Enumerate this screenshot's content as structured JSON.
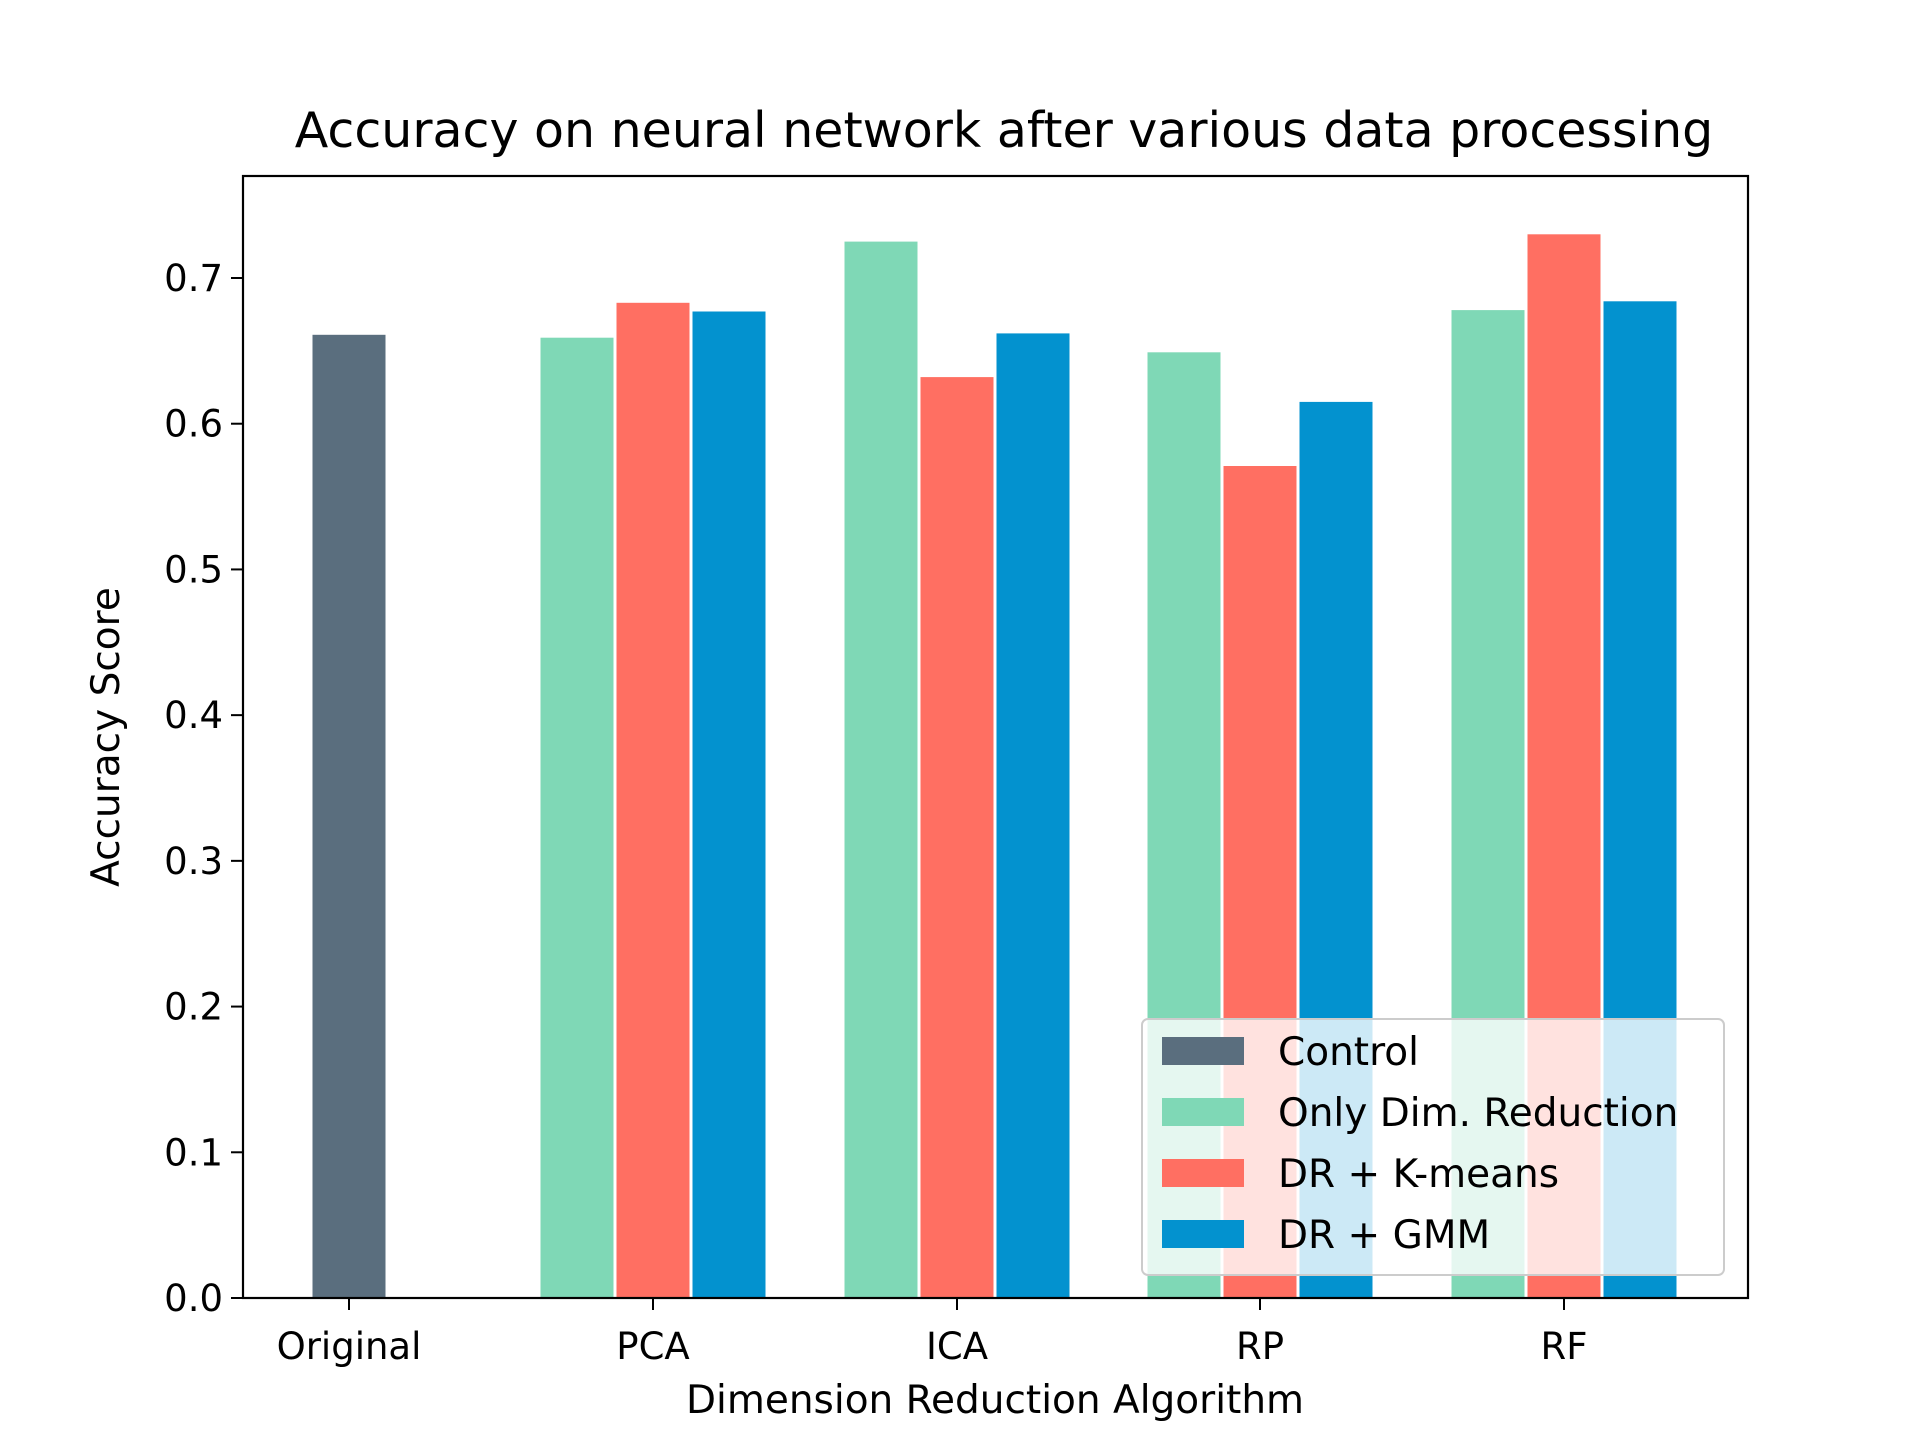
{
  "chart_data": {
    "type": "bar",
    "title": "Accuracy on neural network after various data processing",
    "xlabel": "Dimension Reduction Algorithm",
    "ylabel": "Accuracy Score",
    "categories": [
      "Original",
      "PCA",
      "ICA",
      "RP",
      "RF"
    ],
    "ylim": [
      0,
      0.77
    ],
    "yticks": [
      "0.0",
      "0.1",
      "0.2",
      "0.3",
      "0.4",
      "0.5",
      "0.6",
      "0.7"
    ],
    "grid": false,
    "legend_position": "lower-right",
    "series": [
      {
        "name": "Control",
        "color": "#5a6e7e",
        "values": [
          0.661,
          null,
          null,
          null,
          null
        ]
      },
      {
        "name": "Only Dim. Reduction",
        "color": "#7fd8b6",
        "values": [
          null,
          0.659,
          0.725,
          0.649,
          0.678
        ]
      },
      {
        "name": "DR + K-means",
        "color": "#ff6f62",
        "values": [
          null,
          0.683,
          0.632,
          0.571,
          0.73
        ]
      },
      {
        "name": "DR + GMM",
        "color": "#0392cf",
        "values": [
          null,
          0.677,
          0.662,
          0.615,
          0.684
        ]
      }
    ]
  }
}
